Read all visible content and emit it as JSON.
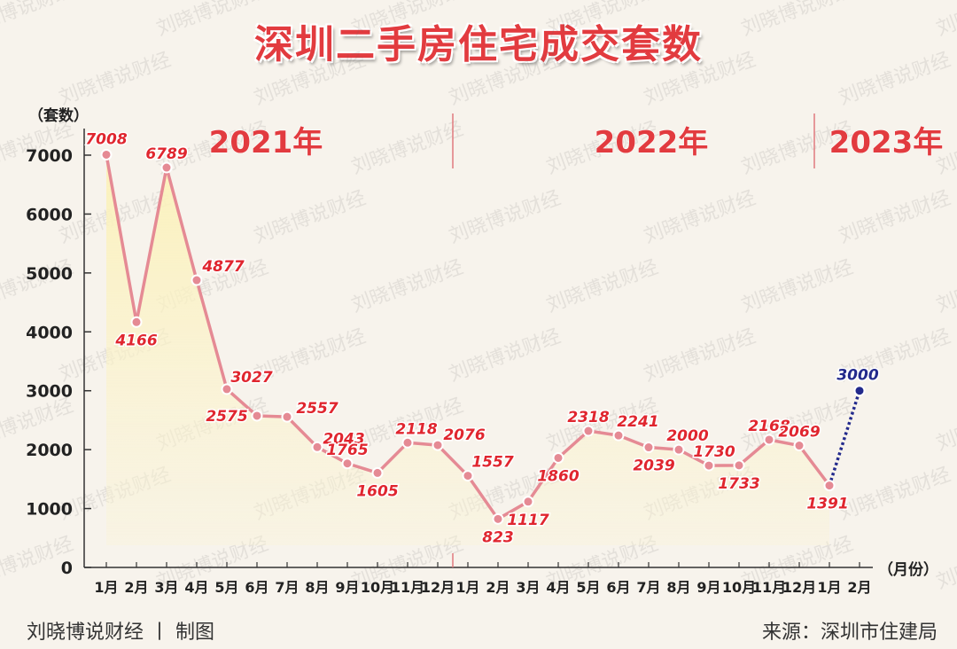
{
  "chart_data": {
    "type": "line",
    "title": "深圳二手房住宅成交套数",
    "ylabel": "（套数）",
    "xlabel": "（月份）",
    "ylim": [
      0,
      7000
    ],
    "yticks": [
      0,
      1000,
      2000,
      3000,
      4000,
      5000,
      6000,
      7000
    ],
    "years": [
      {
        "label": "2021年",
        "months": 12
      },
      {
        "label": "2022年",
        "months": 12
      },
      {
        "label": "2023年",
        "months": 2
      }
    ],
    "categories": [
      "1月",
      "2月",
      "3月",
      "4月",
      "5月",
      "6月",
      "7月",
      "8月",
      "9月",
      "10月",
      "11月",
      "12月",
      "1月",
      "2月",
      "3月",
      "4月",
      "5月",
      "6月",
      "7月",
      "8月",
      "9月",
      "10月",
      "11月",
      "12月",
      "1月",
      "2月"
    ],
    "series": [
      {
        "values": [
          7008,
          4166,
          6789,
          4877,
          3027,
          2575,
          2557,
          2043,
          1765,
          1605,
          2118,
          2076,
          1557,
          823,
          1117,
          1860,
          2318,
          2241,
          2039,
          2000,
          1730,
          1733,
          2168,
          2069,
          1391,
          3000
        ],
        "color": "#e58a94",
        "label_color": "#e0262f",
        "projected_color": "#232a8c",
        "projected_from_index": 24
      }
    ]
  },
  "footer": {
    "left": "刘晓博说财经 丨 制图",
    "right": "来源：深圳市住建局"
  },
  "watermark": "刘晓博说财经"
}
